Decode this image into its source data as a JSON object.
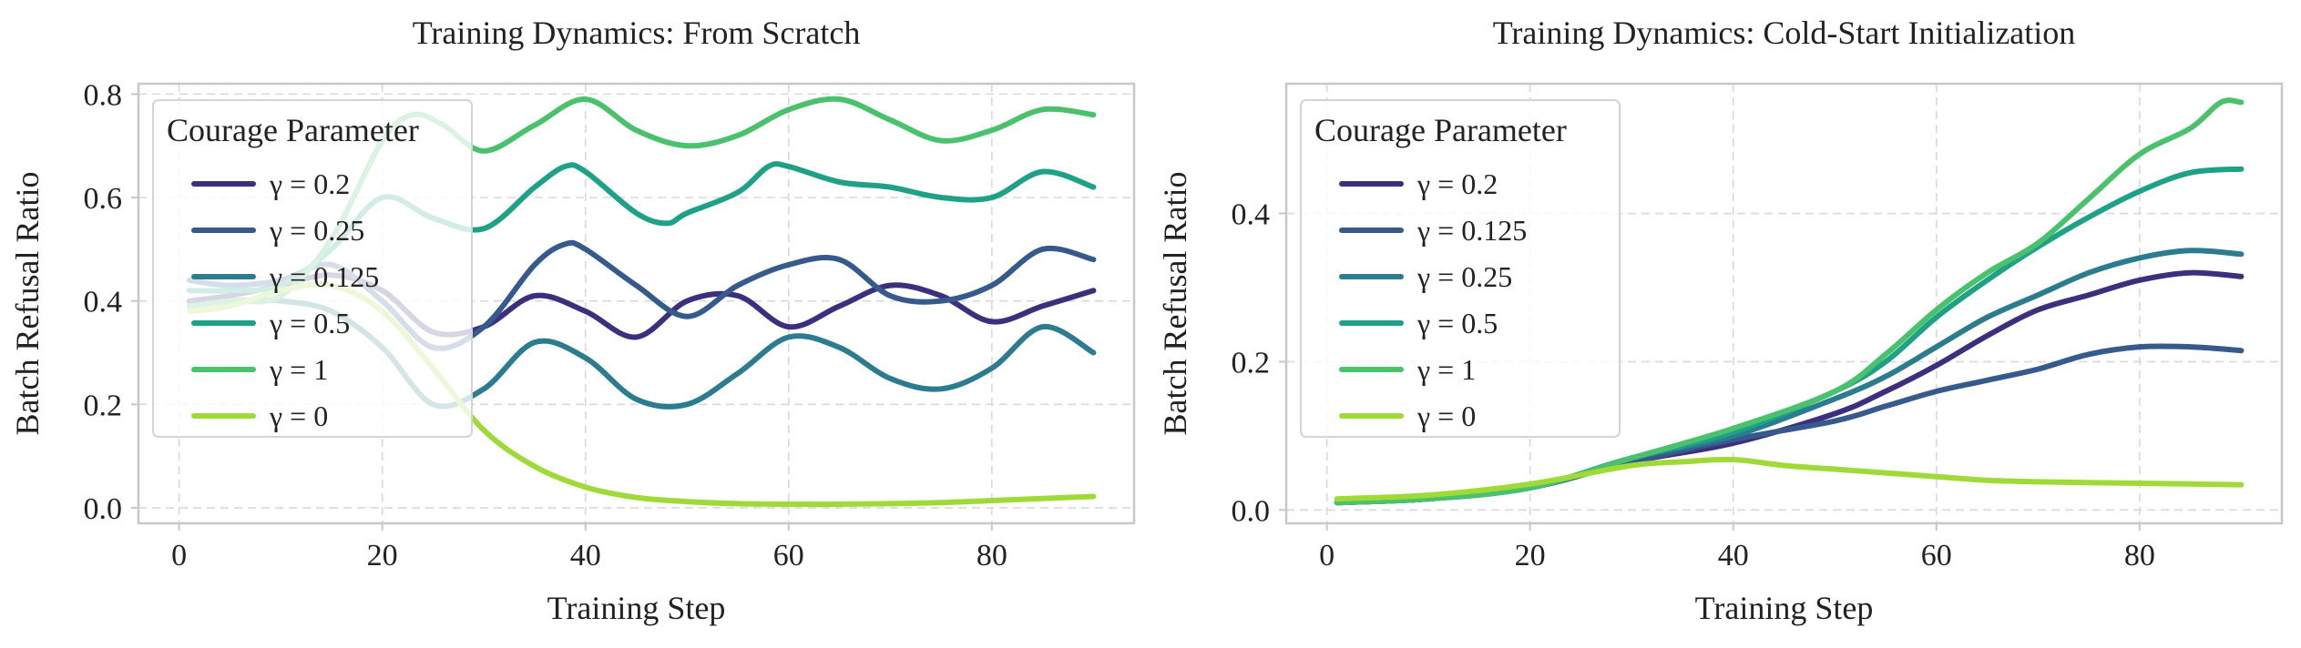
{
  "chart_data": [
    {
      "type": "line",
      "title": "Training Dynamics: From Scratch",
      "xlabel": "Training Step",
      "ylabel": "Batch Refusal Ratio",
      "xlim": [
        -4,
        94
      ],
      "ylim": [
        -0.03,
        0.82
      ],
      "xticks": [
        0,
        20,
        40,
        60,
        80
      ],
      "yticks": [
        0.0,
        0.2,
        0.4,
        0.6,
        0.8
      ],
      "grid": true,
      "legend": {
        "title": "Courage Parameter",
        "placement": "upper-left"
      },
      "series": [
        {
          "name": "γ =  0.2",
          "color": "#3e2f7e",
          "points": [
            [
              1,
              0.4
            ],
            [
              5,
              0.41
            ],
            [
              10,
              0.43
            ],
            [
              15,
              0.45
            ],
            [
              20,
              0.42
            ],
            [
              25,
              0.34
            ],
            [
              30,
              0.35
            ],
            [
              35,
              0.41
            ],
            [
              40,
              0.38
            ],
            [
              45,
              0.33
            ],
            [
              50,
              0.4
            ],
            [
              55,
              0.41
            ],
            [
              60,
              0.35
            ],
            [
              65,
              0.39
            ],
            [
              70,
              0.43
            ],
            [
              75,
              0.41
            ],
            [
              80,
              0.36
            ],
            [
              85,
              0.39
            ],
            [
              90,
              0.42
            ]
          ]
        },
        {
          "name": "γ =  0.25",
          "color": "#355a8b",
          "points": [
            [
              1,
              0.44
            ],
            [
              5,
              0.43
            ],
            [
              10,
              0.44
            ],
            [
              15,
              0.47
            ],
            [
              20,
              0.4
            ],
            [
              25,
              0.31
            ],
            [
              30,
              0.35
            ],
            [
              35,
              0.47
            ],
            [
              38,
              0.51
            ],
            [
              40,
              0.5
            ],
            [
              45,
              0.43
            ],
            [
              50,
              0.37
            ],
            [
              55,
              0.43
            ],
            [
              60,
              0.47
            ],
            [
              65,
              0.48
            ],
            [
              70,
              0.41
            ],
            [
              75,
              0.4
            ],
            [
              80,
              0.43
            ],
            [
              85,
              0.5
            ],
            [
              90,
              0.48
            ]
          ]
        },
        {
          "name": "γ =  0.125",
          "color": "#2a7c8e",
          "points": [
            [
              1,
              0.39
            ],
            [
              5,
              0.4
            ],
            [
              10,
              0.4
            ],
            [
              15,
              0.38
            ],
            [
              20,
              0.31
            ],
            [
              25,
              0.2
            ],
            [
              30,
              0.23
            ],
            [
              35,
              0.32
            ],
            [
              40,
              0.29
            ],
            [
              45,
              0.21
            ],
            [
              50,
              0.2
            ],
            [
              55,
              0.26
            ],
            [
              60,
              0.33
            ],
            [
              65,
              0.31
            ],
            [
              70,
              0.25
            ],
            [
              75,
              0.23
            ],
            [
              80,
              0.27
            ],
            [
              85,
              0.35
            ],
            [
              90,
              0.3
            ]
          ]
        },
        {
          "name": "γ =  0.5",
          "color": "#1fa187",
          "points": [
            [
              1,
              0.42
            ],
            [
              5,
              0.42
            ],
            [
              10,
              0.43
            ],
            [
              15,
              0.5
            ],
            [
              20,
              0.6
            ],
            [
              25,
              0.56
            ],
            [
              30,
              0.54
            ],
            [
              35,
              0.62
            ],
            [
              38,
              0.66
            ],
            [
              40,
              0.65
            ],
            [
              45,
              0.57
            ],
            [
              48,
              0.55
            ],
            [
              50,
              0.57
            ],
            [
              55,
              0.61
            ],
            [
              58,
              0.66
            ],
            [
              60,
              0.66
            ],
            [
              65,
              0.63
            ],
            [
              70,
              0.62
            ],
            [
              75,
              0.6
            ],
            [
              80,
              0.6
            ],
            [
              85,
              0.65
            ],
            [
              90,
              0.62
            ]
          ]
        },
        {
          "name": "γ =  1",
          "color": "#4ac16d",
          "points": [
            [
              1,
              0.39
            ],
            [
              5,
              0.4
            ],
            [
              10,
              0.41
            ],
            [
              15,
              0.52
            ],
            [
              20,
              0.71
            ],
            [
              23,
              0.76
            ],
            [
              26,
              0.74
            ],
            [
              30,
              0.69
            ],
            [
              35,
              0.74
            ],
            [
              40,
              0.79
            ],
            [
              45,
              0.73
            ],
            [
              50,
              0.7
            ],
            [
              55,
              0.72
            ],
            [
              60,
              0.77
            ],
            [
              65,
              0.79
            ],
            [
              70,
              0.75
            ],
            [
              75,
              0.71
            ],
            [
              80,
              0.73
            ],
            [
              85,
              0.77
            ],
            [
              90,
              0.76
            ]
          ]
        },
        {
          "name": "γ =  0",
          "color": "#a0da39",
          "points": [
            [
              1,
              0.38
            ],
            [
              5,
              0.39
            ],
            [
              10,
              0.42
            ],
            [
              15,
              0.43
            ],
            [
              20,
              0.38
            ],
            [
              25,
              0.27
            ],
            [
              30,
              0.15
            ],
            [
              35,
              0.08
            ],
            [
              40,
              0.04
            ],
            [
              45,
              0.02
            ],
            [
              50,
              0.012
            ],
            [
              55,
              0.008
            ],
            [
              60,
              0.007
            ],
            [
              65,
              0.007
            ],
            [
              70,
              0.008
            ],
            [
              75,
              0.01
            ],
            [
              80,
              0.014
            ],
            [
              85,
              0.018
            ],
            [
              90,
              0.022
            ]
          ]
        }
      ]
    },
    {
      "type": "line",
      "title": "Training Dynamics: Cold-Start Initialization",
      "xlabel": "Training Step",
      "ylabel": "Batch Refusal Ratio",
      "xlim": [
        -4,
        94
      ],
      "ylim": [
        -0.018,
        0.575
      ],
      "xticks": [
        0,
        20,
        40,
        60,
        80
      ],
      "yticks": [
        0.0,
        0.2,
        0.4
      ],
      "grid": true,
      "legend": {
        "title": "Courage Parameter",
        "placement": "upper-left"
      },
      "series": [
        {
          "name": "γ =  0.2",
          "color": "#3e2f7e",
          "points": [
            [
              1,
              0.01
            ],
            [
              10,
              0.015
            ],
            [
              20,
              0.03
            ],
            [
              30,
              0.065
            ],
            [
              40,
              0.09
            ],
            [
              50,
              0.13
            ],
            [
              55,
              0.16
            ],
            [
              60,
              0.195
            ],
            [
              65,
              0.235
            ],
            [
              70,
              0.27
            ],
            [
              75,
              0.29
            ],
            [
              80,
              0.31
            ],
            [
              85,
              0.32
            ],
            [
              90,
              0.315
            ]
          ]
        },
        {
          "name": "γ =  0.125",
          "color": "#355a8b",
          "points": [
            [
              1,
              0.01
            ],
            [
              10,
              0.015
            ],
            [
              20,
              0.03
            ],
            [
              30,
              0.065
            ],
            [
              40,
              0.095
            ],
            [
              50,
              0.12
            ],
            [
              55,
              0.14
            ],
            [
              60,
              0.16
            ],
            [
              65,
              0.175
            ],
            [
              70,
              0.19
            ],
            [
              75,
              0.21
            ],
            [
              80,
              0.22
            ],
            [
              85,
              0.22
            ],
            [
              90,
              0.215
            ]
          ]
        },
        {
          "name": "γ =  0.25",
          "color": "#2a7c8e",
          "points": [
            [
              1,
              0.01
            ],
            [
              10,
              0.015
            ],
            [
              20,
              0.03
            ],
            [
              30,
              0.07
            ],
            [
              40,
              0.1
            ],
            [
              50,
              0.15
            ],
            [
              55,
              0.18
            ],
            [
              60,
              0.22
            ],
            [
              65,
              0.26
            ],
            [
              70,
              0.29
            ],
            [
              75,
              0.32
            ],
            [
              80,
              0.34
            ],
            [
              85,
              0.35
            ],
            [
              90,
              0.345
            ]
          ]
        },
        {
          "name": "γ =  0.5",
          "color": "#1fa187",
          "points": [
            [
              1,
              0.01
            ],
            [
              10,
              0.015
            ],
            [
              20,
              0.03
            ],
            [
              30,
              0.07
            ],
            [
              40,
              0.105
            ],
            [
              50,
              0.16
            ],
            [
              55,
              0.2
            ],
            [
              60,
              0.26
            ],
            [
              65,
              0.31
            ],
            [
              70,
              0.355
            ],
            [
              75,
              0.395
            ],
            [
              80,
              0.43
            ],
            [
              85,
              0.455
            ],
            [
              90,
              0.46
            ]
          ]
        },
        {
          "name": "γ =  1",
          "color": "#4ac16d",
          "points": [
            [
              1,
              0.01
            ],
            [
              10,
              0.015
            ],
            [
              20,
              0.03
            ],
            [
              30,
              0.07
            ],
            [
              40,
              0.11
            ],
            [
              50,
              0.16
            ],
            [
              55,
              0.21
            ],
            [
              60,
              0.27
            ],
            [
              65,
              0.32
            ],
            [
              70,
              0.36
            ],
            [
              75,
              0.42
            ],
            [
              80,
              0.48
            ],
            [
              85,
              0.515
            ],
            [
              88,
              0.55
            ],
            [
              90,
              0.55
            ]
          ]
        },
        {
          "name": "γ =  0",
          "color": "#a0da39",
          "points": [
            [
              1,
              0.015
            ],
            [
              10,
              0.02
            ],
            [
              20,
              0.035
            ],
            [
              30,
              0.06
            ],
            [
              35,
              0.065
            ],
            [
              40,
              0.068
            ],
            [
              45,
              0.06
            ],
            [
              50,
              0.055
            ],
            [
              55,
              0.05
            ],
            [
              60,
              0.045
            ],
            [
              65,
              0.04
            ],
            [
              70,
              0.038
            ],
            [
              75,
              0.037
            ],
            [
              80,
              0.036
            ],
            [
              85,
              0.035
            ],
            [
              90,
              0.034
            ]
          ]
        }
      ]
    }
  ]
}
